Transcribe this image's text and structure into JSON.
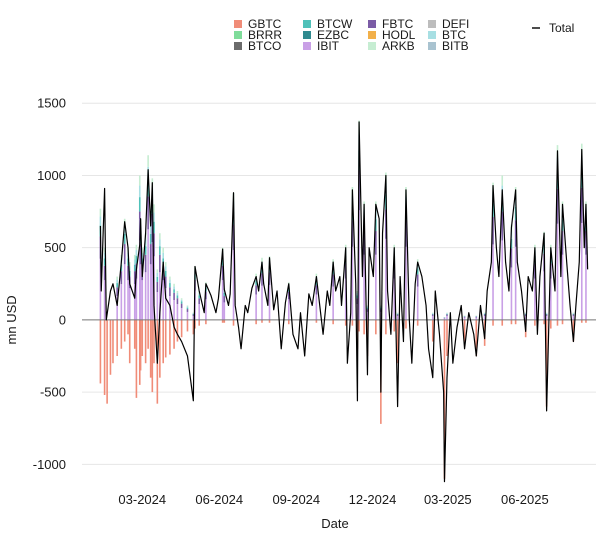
{
  "chart_data": {
    "type": "bar",
    "subtype": "stacked-bar-with-total-line",
    "xlabel": "Date",
    "ylabel": "mn USD",
    "ylim": [
      -1150,
      1550
    ],
    "xlim": [
      "2023-12-20",
      "2025-08-25"
    ],
    "yticks": [
      -1000,
      -500,
      0,
      500,
      1000,
      1500
    ],
    "ytick_labels": [
      "-1000",
      "-500",
      "0",
      "500",
      "1000",
      "1500"
    ],
    "xticks": [
      "2024-03-01",
      "2024-06-01",
      "2024-09-01",
      "2024-12-01",
      "2025-03-01",
      "2025-06-01"
    ],
    "xtick_labels": [
      "03-2024",
      "06-2024",
      "09-2024",
      "12-2024",
      "03-2025",
      "06-2025"
    ],
    "grid": "horizontal",
    "legend_position": "top",
    "zero_line_color": "#7a7a7a",
    "series": [
      {
        "name": "GBTC",
        "color": "#f08c78"
      },
      {
        "name": "BRRR",
        "color": "#7fdc9a"
      },
      {
        "name": "BTCO",
        "color": "#6b6b6b"
      },
      {
        "name": "BTCW",
        "color": "#4fc1b9"
      },
      {
        "name": "EZBC",
        "color": "#2f8a8f"
      },
      {
        "name": "IBIT",
        "color": "#c9a0e6"
      },
      {
        "name": "FBTC",
        "color": "#7b5ca6"
      },
      {
        "name": "HODL",
        "color": "#f2b04a"
      },
      {
        "name": "ARKB",
        "color": "#c6edd2"
      },
      {
        "name": "DEFI",
        "color": "#bdbdbd"
      },
      {
        "name": "BTC",
        "color": "#a7dfe3"
      },
      {
        "name": "BITB",
        "color": "#a9c3d0"
      }
    ],
    "total_line": {
      "name": "Total",
      "color": "#000000"
    },
    "total_points": [
      [
        "2024-01-11",
        650
      ],
      [
        "2024-01-12",
        200
      ],
      [
        "2024-01-16",
        910
      ],
      [
        "2024-01-18",
        0
      ],
      [
        "2024-01-23",
        200
      ],
      [
        "2024-01-26",
        250
      ],
      [
        "2024-01-31",
        100
      ],
      [
        "2024-02-05",
        400
      ],
      [
        "2024-02-09",
        680
      ],
      [
        "2024-02-13",
        500
      ],
      [
        "2024-02-15",
        250
      ],
      [
        "2024-02-21",
        150
      ],
      [
        "2024-02-23",
        350
      ],
      [
        "2024-02-27",
        520
      ],
      [
        "2024-02-28",
        700
      ],
      [
        "2024-03-01",
        300
      ],
      [
        "2024-03-05",
        600
      ],
      [
        "2024-03-08",
        1040
      ],
      [
        "2024-03-11",
        650
      ],
      [
        "2024-03-13",
        950
      ],
      [
        "2024-03-15",
        100
      ],
      [
        "2024-03-19",
        -300
      ],
      [
        "2024-03-22",
        50
      ],
      [
        "2024-03-26",
        400
      ],
      [
        "2024-03-29",
        150
      ],
      [
        "2024-04-03",
        100
      ],
      [
        "2024-04-08",
        -50
      ],
      [
        "2024-04-12",
        -100
      ],
      [
        "2024-04-17",
        -150
      ],
      [
        "2024-04-24",
        -250
      ],
      [
        "2024-05-01",
        -560
      ],
      [
        "2024-05-03",
        370
      ],
      [
        "2024-05-08",
        200
      ],
      [
        "2024-05-14",
        50
      ],
      [
        "2024-05-16",
        250
      ],
      [
        "2024-05-22",
        170
      ],
      [
        "2024-05-28",
        50
      ],
      [
        "2024-05-31",
        150
      ],
      [
        "2024-06-05",
        490
      ],
      [
        "2024-06-07",
        210
      ],
      [
        "2024-06-12",
        100
      ],
      [
        "2024-06-14",
        180
      ],
      [
        "2024-06-18",
        880
      ],
      [
        "2024-06-20",
        100
      ],
      [
        "2024-06-24",
        -50
      ],
      [
        "2024-06-27",
        -200
      ],
      [
        "2024-07-02",
        100
      ],
      [
        "2024-07-05",
        50
      ],
      [
        "2024-07-10",
        220
      ],
      [
        "2024-07-15",
        300
      ],
      [
        "2024-07-18",
        200
      ],
      [
        "2024-07-22",
        400
      ],
      [
        "2024-07-24",
        250
      ],
      [
        "2024-07-29",
        100
      ],
      [
        "2024-07-31",
        430
      ],
      [
        "2024-08-05",
        70
      ],
      [
        "2024-08-09",
        200
      ],
      [
        "2024-08-14",
        -200
      ],
      [
        "2024-08-19",
        120
      ],
      [
        "2024-08-23",
        250
      ],
      [
        "2024-08-28",
        -100
      ],
      [
        "2024-09-03",
        -200
      ],
      [
        "2024-09-06",
        50
      ],
      [
        "2024-09-11",
        -250
      ],
      [
        "2024-09-16",
        180
      ],
      [
        "2024-09-20",
        100
      ],
      [
        "2024-09-25",
        300
      ],
      [
        "2024-09-30",
        50
      ],
      [
        "2024-10-03",
        -100
      ],
      [
        "2024-10-08",
        200
      ],
      [
        "2024-10-11",
        100
      ],
      [
        "2024-10-15",
        400
      ],
      [
        "2024-10-18",
        200
      ],
      [
        "2024-10-23",
        300
      ],
      [
        "2024-10-25",
        100
      ],
      [
        "2024-10-30",
        500
      ],
      [
        "2024-11-01",
        -300
      ],
      [
        "2024-11-05",
        50
      ],
      [
        "2024-11-07",
        900
      ],
      [
        "2024-11-11",
        250
      ],
      [
        "2024-11-13",
        -560
      ],
      [
        "2024-11-15",
        1370
      ],
      [
        "2024-11-19",
        300
      ],
      [
        "2024-11-21",
        800
      ],
      [
        "2024-11-25",
        -380
      ],
      [
        "2024-11-27",
        500
      ],
      [
        "2024-12-02",
        300
      ],
      [
        "2024-12-05",
        800
      ],
      [
        "2024-12-09",
        700
      ],
      [
        "2024-12-11",
        -500
      ],
      [
        "2024-12-13",
        600
      ],
      [
        "2024-12-17",
        1000
      ],
      [
        "2024-12-19",
        200
      ],
      [
        "2024-12-23",
        -100
      ],
      [
        "2024-12-27",
        500
      ],
      [
        "2024-12-31",
        -600
      ],
      [
        "2025-01-03",
        300
      ],
      [
        "2025-01-07",
        -150
      ],
      [
        "2025-01-10",
        900
      ],
      [
        "2025-01-14",
        0
      ],
      [
        "2025-01-17",
        -300
      ],
      [
        "2025-01-21",
        250
      ],
      [
        "2025-01-24",
        400
      ],
      [
        "2025-01-29",
        300
      ],
      [
        "2025-02-03",
        100
      ],
      [
        "2025-02-06",
        -200
      ],
      [
        "2025-02-11",
        -400
      ],
      [
        "2025-02-14",
        200
      ],
      [
        "2025-02-19",
        -100
      ],
      [
        "2025-02-24",
        -500
      ],
      [
        "2025-02-25",
        -1120
      ],
      [
        "2025-02-28",
        -400
      ],
      [
        "2025-03-04",
        50
      ],
      [
        "2025-03-07",
        -300
      ],
      [
        "2025-03-12",
        -50
      ],
      [
        "2025-03-17",
        100
      ],
      [
        "2025-03-21",
        -200
      ],
      [
        "2025-03-26",
        50
      ],
      [
        "2025-04-01",
        -100
      ],
      [
        "2025-04-04",
        -250
      ],
      [
        "2025-04-09",
        100
      ],
      [
        "2025-04-14",
        -130
      ],
      [
        "2025-04-17",
        200
      ],
      [
        "2025-04-22",
        400
      ],
      [
        "2025-04-24",
        930
      ],
      [
        "2025-04-28",
        500
      ],
      [
        "2025-05-01",
        300
      ],
      [
        "2025-05-05",
        900
      ],
      [
        "2025-05-09",
        400
      ],
      [
        "2025-05-13",
        200
      ],
      [
        "2025-05-16",
        640
      ],
      [
        "2025-05-21",
        900
      ],
      [
        "2025-05-23",
        400
      ],
      [
        "2025-05-28",
        200
      ],
      [
        "2025-06-02",
        -80
      ],
      [
        "2025-06-05",
        300
      ],
      [
        "2025-06-10",
        200
      ],
      [
        "2025-06-13",
        500
      ],
      [
        "2025-06-16",
        -100
      ],
      [
        "2025-06-19",
        300
      ],
      [
        "2025-06-24",
        600
      ],
      [
        "2025-06-27",
        -630
      ],
      [
        "2025-07-02",
        500
      ],
      [
        "2025-07-07",
        200
      ],
      [
        "2025-07-10",
        1170
      ],
      [
        "2025-07-14",
        300
      ],
      [
        "2025-07-16",
        800
      ],
      [
        "2025-07-21",
        400
      ],
      [
        "2025-07-25",
        100
      ],
      [
        "2025-07-29",
        -150
      ],
      [
        "2025-08-01",
        100
      ],
      [
        "2025-08-05",
        400
      ],
      [
        "2025-08-08",
        1180
      ],
      [
        "2025-08-11",
        500
      ],
      [
        "2025-08-13",
        800
      ],
      [
        "2025-08-15",
        350
      ]
    ],
    "stacked_bars": [
      [
        "2024-01-11",
        120,
        770
      ],
      [
        "2024-01-11",
        -440,
        0
      ],
      [
        "2024-01-16",
        0,
        500
      ],
      [
        "2024-01-16",
        -520,
        0
      ],
      [
        "2024-01-19",
        -580,
        0
      ],
      [
        "2024-01-23",
        -380,
        0
      ],
      [
        "2024-01-26",
        -300,
        0
      ],
      [
        "2024-01-31",
        -250,
        300
      ],
      [
        "2024-02-05",
        -200,
        450
      ],
      [
        "2024-02-09",
        -150,
        700
      ],
      [
        "2024-02-13",
        -100,
        500
      ],
      [
        "2024-02-15",
        -300,
        400
      ],
      [
        "2024-02-21",
        -200,
        450
      ],
      [
        "2024-02-23",
        -540,
        520
      ],
      [
        "2024-02-27",
        -450,
        1000
      ],
      [
        "2024-02-28",
        -350,
        700
      ],
      [
        "2024-03-01",
        -250,
        500
      ],
      [
        "2024-03-05",
        -300,
        600
      ],
      [
        "2024-03-08",
        -200,
        1140
      ],
      [
        "2024-03-11",
        -400,
        700
      ],
      [
        "2024-03-13",
        -500,
        980
      ],
      [
        "2024-03-15",
        -300,
        800
      ],
      [
        "2024-03-19",
        -580,
        350
      ],
      [
        "2024-03-22",
        -400,
        600
      ],
      [
        "2024-03-26",
        -300,
        500
      ],
      [
        "2024-03-29",
        -260,
        400
      ],
      [
        "2024-04-03",
        -240,
        300
      ],
      [
        "2024-04-08",
        -200,
        250
      ],
      [
        "2024-04-12",
        -150,
        200
      ],
      [
        "2024-04-17",
        -120,
        150
      ],
      [
        "2024-04-24",
        -80,
        100
      ],
      [
        "2024-05-01",
        -100,
        50
      ],
      [
        "2024-05-03",
        -60,
        370
      ],
      [
        "2024-05-08",
        -40,
        200
      ],
      [
        "2024-05-16",
        -30,
        260
      ],
      [
        "2024-06-05",
        -20,
        500
      ],
      [
        "2024-06-07",
        -20,
        220
      ],
      [
        "2024-06-18",
        -40,
        880
      ],
      [
        "2024-07-15",
        -30,
        320
      ],
      [
        "2024-07-22",
        -20,
        430
      ],
      [
        "2024-07-31",
        -20,
        440
      ],
      [
        "2024-08-23",
        -30,
        260
      ],
      [
        "2024-09-25",
        -20,
        320
      ],
      [
        "2024-10-15",
        -30,
        420
      ],
      [
        "2024-10-30",
        -40,
        520
      ],
      [
        "2024-11-07",
        -40,
        920
      ],
      [
        "2024-11-13",
        -200,
        200
      ],
      [
        "2024-11-15",
        -80,
        1380
      ],
      [
        "2024-11-21",
        -100,
        820
      ],
      [
        "2024-11-25",
        -250,
        100
      ],
      [
        "2024-12-05",
        -100,
        820
      ],
      [
        "2024-12-11",
        -720,
        100
      ],
      [
        "2024-12-17",
        -100,
        1020
      ],
      [
        "2024-12-27",
        -80,
        520
      ],
      [
        "2024-12-31",
        -300,
        50
      ],
      [
        "2025-01-10",
        -60,
        920
      ],
      [
        "2025-01-24",
        -40,
        420
      ],
      [
        "2025-02-11",
        -150,
        50
      ],
      [
        "2025-02-25",
        -1100,
        20
      ],
      [
        "2025-02-28",
        -250,
        50
      ],
      [
        "2025-03-21",
        -150,
        30
      ],
      [
        "2025-04-04",
        -250,
        30
      ],
      [
        "2025-04-14",
        -180,
        50
      ],
      [
        "2025-04-24",
        -40,
        950
      ],
      [
        "2025-05-05",
        -40,
        1000
      ],
      [
        "2025-05-16",
        -30,
        660
      ],
      [
        "2025-05-21",
        -30,
        920
      ],
      [
        "2025-06-02",
        -120,
        50
      ],
      [
        "2025-06-13",
        -40,
        520
      ],
      [
        "2025-06-24",
        -30,
        610
      ],
      [
        "2025-06-27",
        -600,
        50
      ],
      [
        "2025-07-02",
        -60,
        520
      ],
      [
        "2025-07-10",
        -40,
        1210
      ],
      [
        "2025-07-16",
        -30,
        820
      ],
      [
        "2025-07-29",
        -150,
        50
      ],
      [
        "2025-08-08",
        -20,
        1220
      ],
      [
        "2025-08-13",
        -20,
        820
      ]
    ]
  }
}
